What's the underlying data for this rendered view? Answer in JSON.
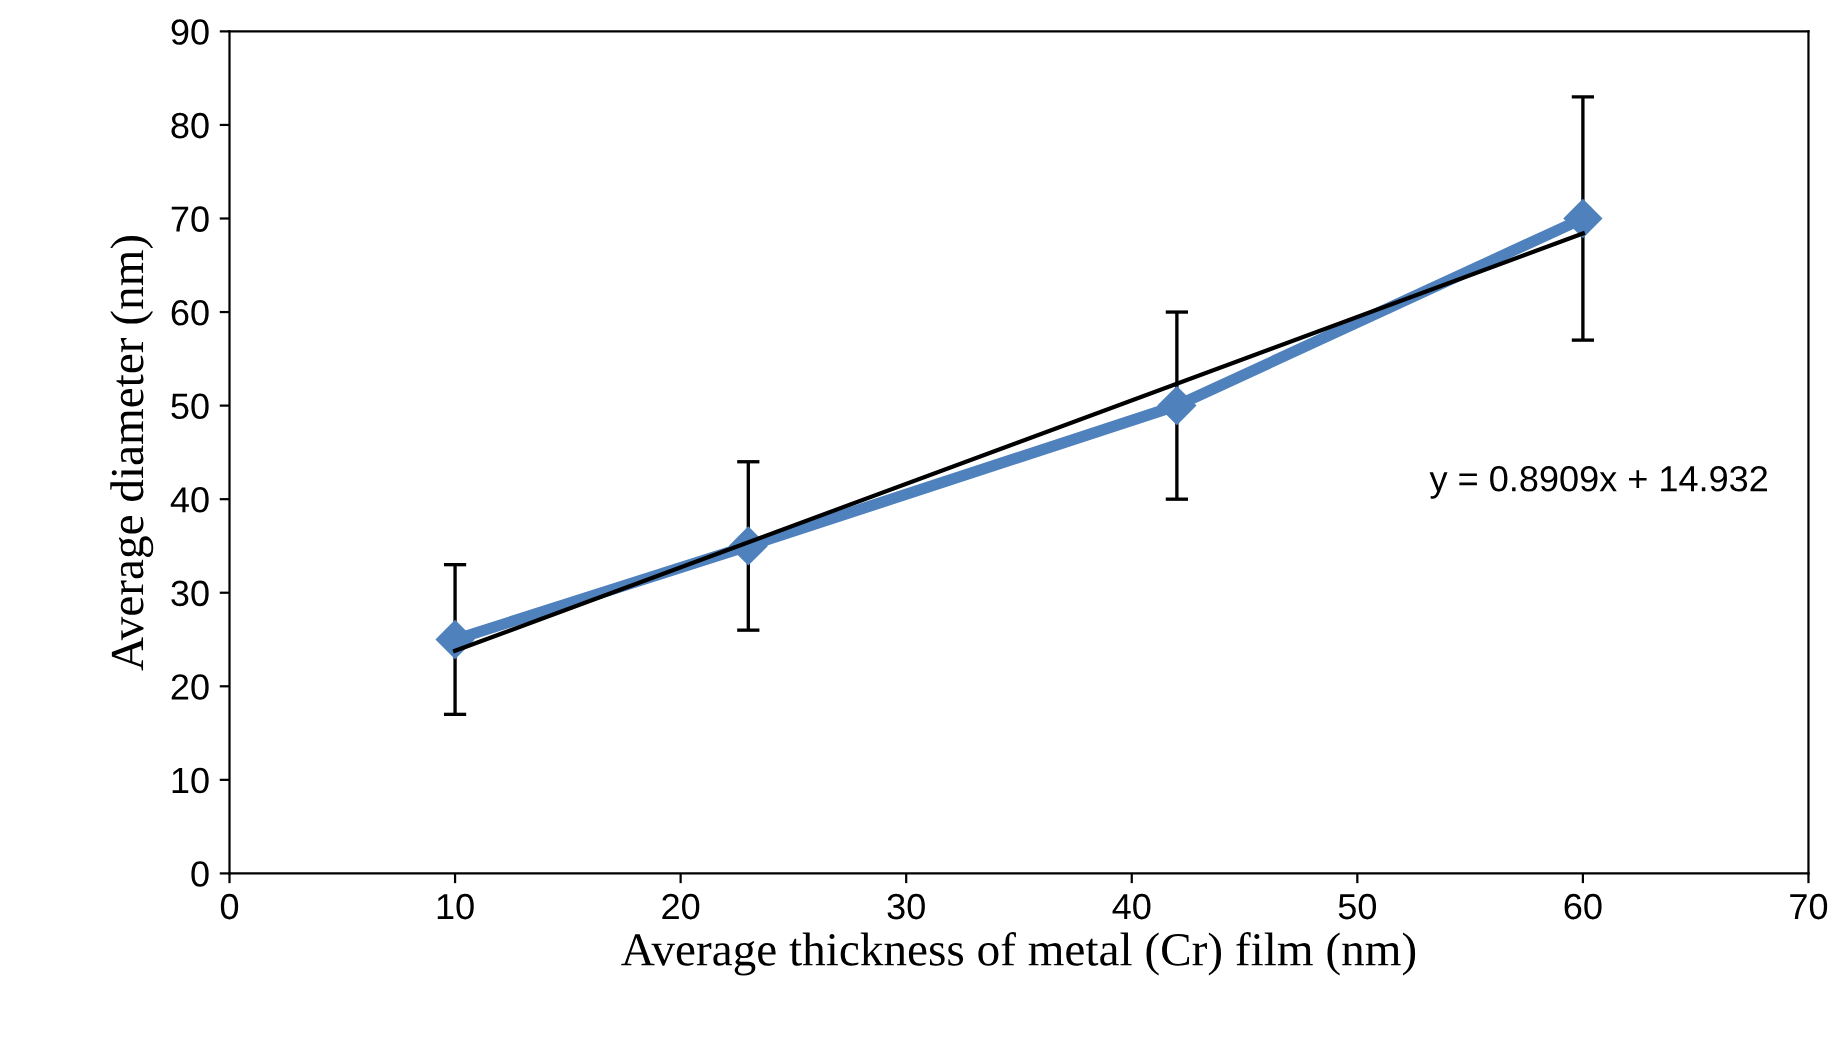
{
  "chart_data": {
    "type": "line",
    "xlabel": "Average thickness of metal (Cr) film (nm)",
    "ylabel": "Average diameter (nm)",
    "xlim": [
      0,
      70
    ],
    "xticks": [
      0,
      10,
      20,
      30,
      40,
      50,
      60,
      70
    ],
    "ylim": [
      0,
      90
    ],
    "yticks": [
      0,
      10,
      20,
      30,
      40,
      50,
      60,
      70,
      80,
      90
    ],
    "marker": "diamond",
    "grid": false,
    "legend": false,
    "series": [
      {
        "color": "#4f81bd",
        "x": [
          10,
          23,
          42,
          60
        ],
        "values": [
          25,
          35,
          50,
          70
        ],
        "errors": [
          8,
          9,
          10,
          13
        ]
      },
      {
        "color": "#000000",
        "marker": "none",
        "x": [
          10,
          60
        ],
        "values": [
          23.8,
          68.4
        ]
      }
    ],
    "annotations": [
      "y = 0.8909x + 14.932"
    ]
  }
}
